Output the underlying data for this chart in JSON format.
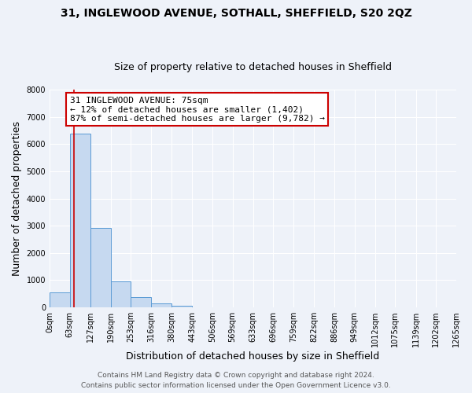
{
  "title_line1": "31, INGLEWOOD AVENUE, SOTHALL, SHEFFIELD, S20 2QZ",
  "title_line2": "Size of property relative to detached houses in Sheffield",
  "xlabel": "Distribution of detached houses by size in Sheffield",
  "ylabel": "Number of detached properties",
  "bar_edges": [
    0,
    63,
    127,
    190,
    253,
    316,
    380,
    443,
    506,
    569,
    633,
    696,
    759,
    822,
    886,
    949,
    1012,
    1075,
    1139,
    1202,
    1265
  ],
  "bar_heights": [
    550,
    6380,
    2920,
    960,
    370,
    155,
    60,
    10,
    0,
    0,
    0,
    0,
    0,
    0,
    0,
    0,
    0,
    0,
    0,
    0
  ],
  "bar_color": "#c6d9f0",
  "bar_edge_color": "#5b9bd5",
  "property_size": 75,
  "vline_color": "#cc0000",
  "annotation_text": "31 INGLEWOOD AVENUE: 75sqm\n← 12% of detached houses are smaller (1,402)\n87% of semi-detached houses are larger (9,782) →",
  "annotation_box_color": "#ffffff",
  "annotation_box_edge_color": "#cc0000",
  "ylim": [
    0,
    8000
  ],
  "yticks": [
    0,
    1000,
    2000,
    3000,
    4000,
    5000,
    6000,
    7000,
    8000
  ],
  "xtick_labels": [
    "0sqm",
    "63sqm",
    "127sqm",
    "190sqm",
    "253sqm",
    "316sqm",
    "380sqm",
    "443sqm",
    "506sqm",
    "569sqm",
    "633sqm",
    "696sqm",
    "759sqm",
    "822sqm",
    "886sqm",
    "949sqm",
    "1012sqm",
    "1075sqm",
    "1139sqm",
    "1202sqm",
    "1265sqm"
  ],
  "footer_line1": "Contains HM Land Registry data © Crown copyright and database right 2024.",
  "footer_line2": "Contains public sector information licensed under the Open Government Licence v3.0.",
  "bg_color": "#eef2f9",
  "grid_color": "#ffffff",
  "title_fontsize": 10,
  "subtitle_fontsize": 9,
  "axis_label_fontsize": 9,
  "tick_fontsize": 7,
  "footer_fontsize": 6.5,
  "annotation_fontsize": 8
}
